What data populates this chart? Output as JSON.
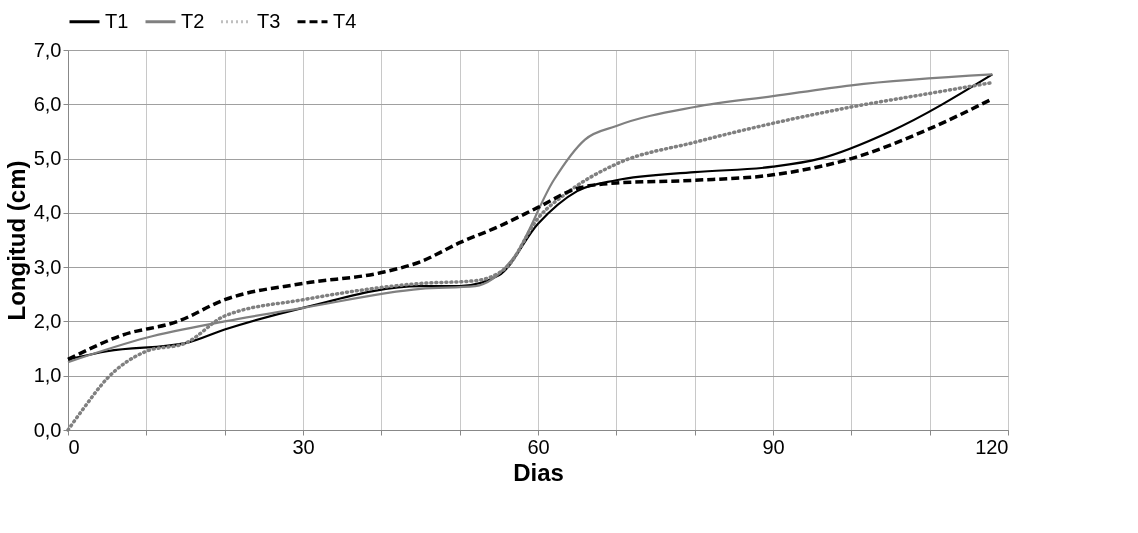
{
  "chart_data": {
    "type": "line",
    "xlabel": "Dias",
    "ylabel": "Longitud (cm)",
    "xlim": [
      0,
      120
    ],
    "xticks": [
      0,
      {
        "value": 10,
        "label": null
      },
      {
        "value": 20,
        "label": null
      },
      30,
      {
        "value": 40,
        "label": null
      },
      {
        "value": 50,
        "label": null
      },
      60,
      {
        "value": 70,
        "label": null
      },
      {
        "value": 80,
        "label": null
      },
      90,
      {
        "value": 100,
        "label": null
      },
      {
        "value": 110,
        "label": null
      },
      120
    ],
    "ylim": [
      0,
      7
    ],
    "yticks": [
      {
        "value": 0,
        "label": "0,0"
      },
      {
        "value": 1,
        "label": "1,0"
      },
      {
        "value": 2,
        "label": "2,0"
      },
      {
        "value": 3,
        "label": "3,0"
      },
      {
        "value": 4,
        "label": "4,0"
      },
      {
        "value": 5,
        "label": "5,0"
      },
      {
        "value": 6,
        "label": "6,0"
      },
      {
        "value": 7,
        "label": "7,0"
      }
    ],
    "grid": true,
    "legend": "top",
    "series": [
      {
        "name": "T1",
        "color": "#000000",
        "line_style": "solid",
        "x": [
          0,
          5,
          15,
          20,
          30,
          45,
          50,
          55,
          60,
          65,
          70,
          80,
          90,
          96,
          105,
          118
        ],
        "values": [
          1.3,
          1.45,
          1.6,
          1.85,
          2.25,
          2.65,
          2.65,
          2.85,
          3.8,
          4.4,
          4.6,
          4.75,
          4.85,
          5.0,
          5.5,
          6.55
        ]
      },
      {
        "name": "T2",
        "color": "#808080",
        "line_style": "solid",
        "x": [
          0,
          10,
          20,
          30,
          45,
          52,
          57,
          62,
          66,
          70,
          80,
          90,
          100,
          118
        ],
        "values": [
          1.25,
          1.7,
          2.0,
          2.25,
          2.6,
          2.65,
          3.2,
          4.6,
          5.35,
          5.6,
          5.95,
          6.15,
          6.35,
          6.55
        ]
      },
      {
        "name": "T3",
        "color": "#808080",
        "line_style": "dotted",
        "x": [
          0,
          2,
          5,
          10,
          15,
          20,
          30,
          45,
          52,
          56,
          60,
          64,
          70,
          80,
          90,
          100,
          110,
          118
        ],
        "values": [
          0.0,
          0.4,
          0.95,
          1.45,
          1.6,
          2.1,
          2.4,
          2.7,
          2.75,
          3.0,
          3.9,
          4.4,
          4.9,
          5.3,
          5.65,
          5.95,
          6.2,
          6.4
        ]
      },
      {
        "name": "T4",
        "color": "#000000",
        "line_style": "dashed",
        "x": [
          0,
          7,
          14,
          20,
          30,
          40,
          45,
          50,
          55,
          60,
          65,
          70,
          80,
          90,
          100,
          110,
          118
        ],
        "values": [
          1.3,
          1.75,
          2.0,
          2.4,
          2.7,
          2.9,
          3.1,
          3.45,
          3.75,
          4.1,
          4.45,
          4.55,
          4.6,
          4.7,
          5.0,
          5.55,
          6.1
        ]
      }
    ]
  }
}
